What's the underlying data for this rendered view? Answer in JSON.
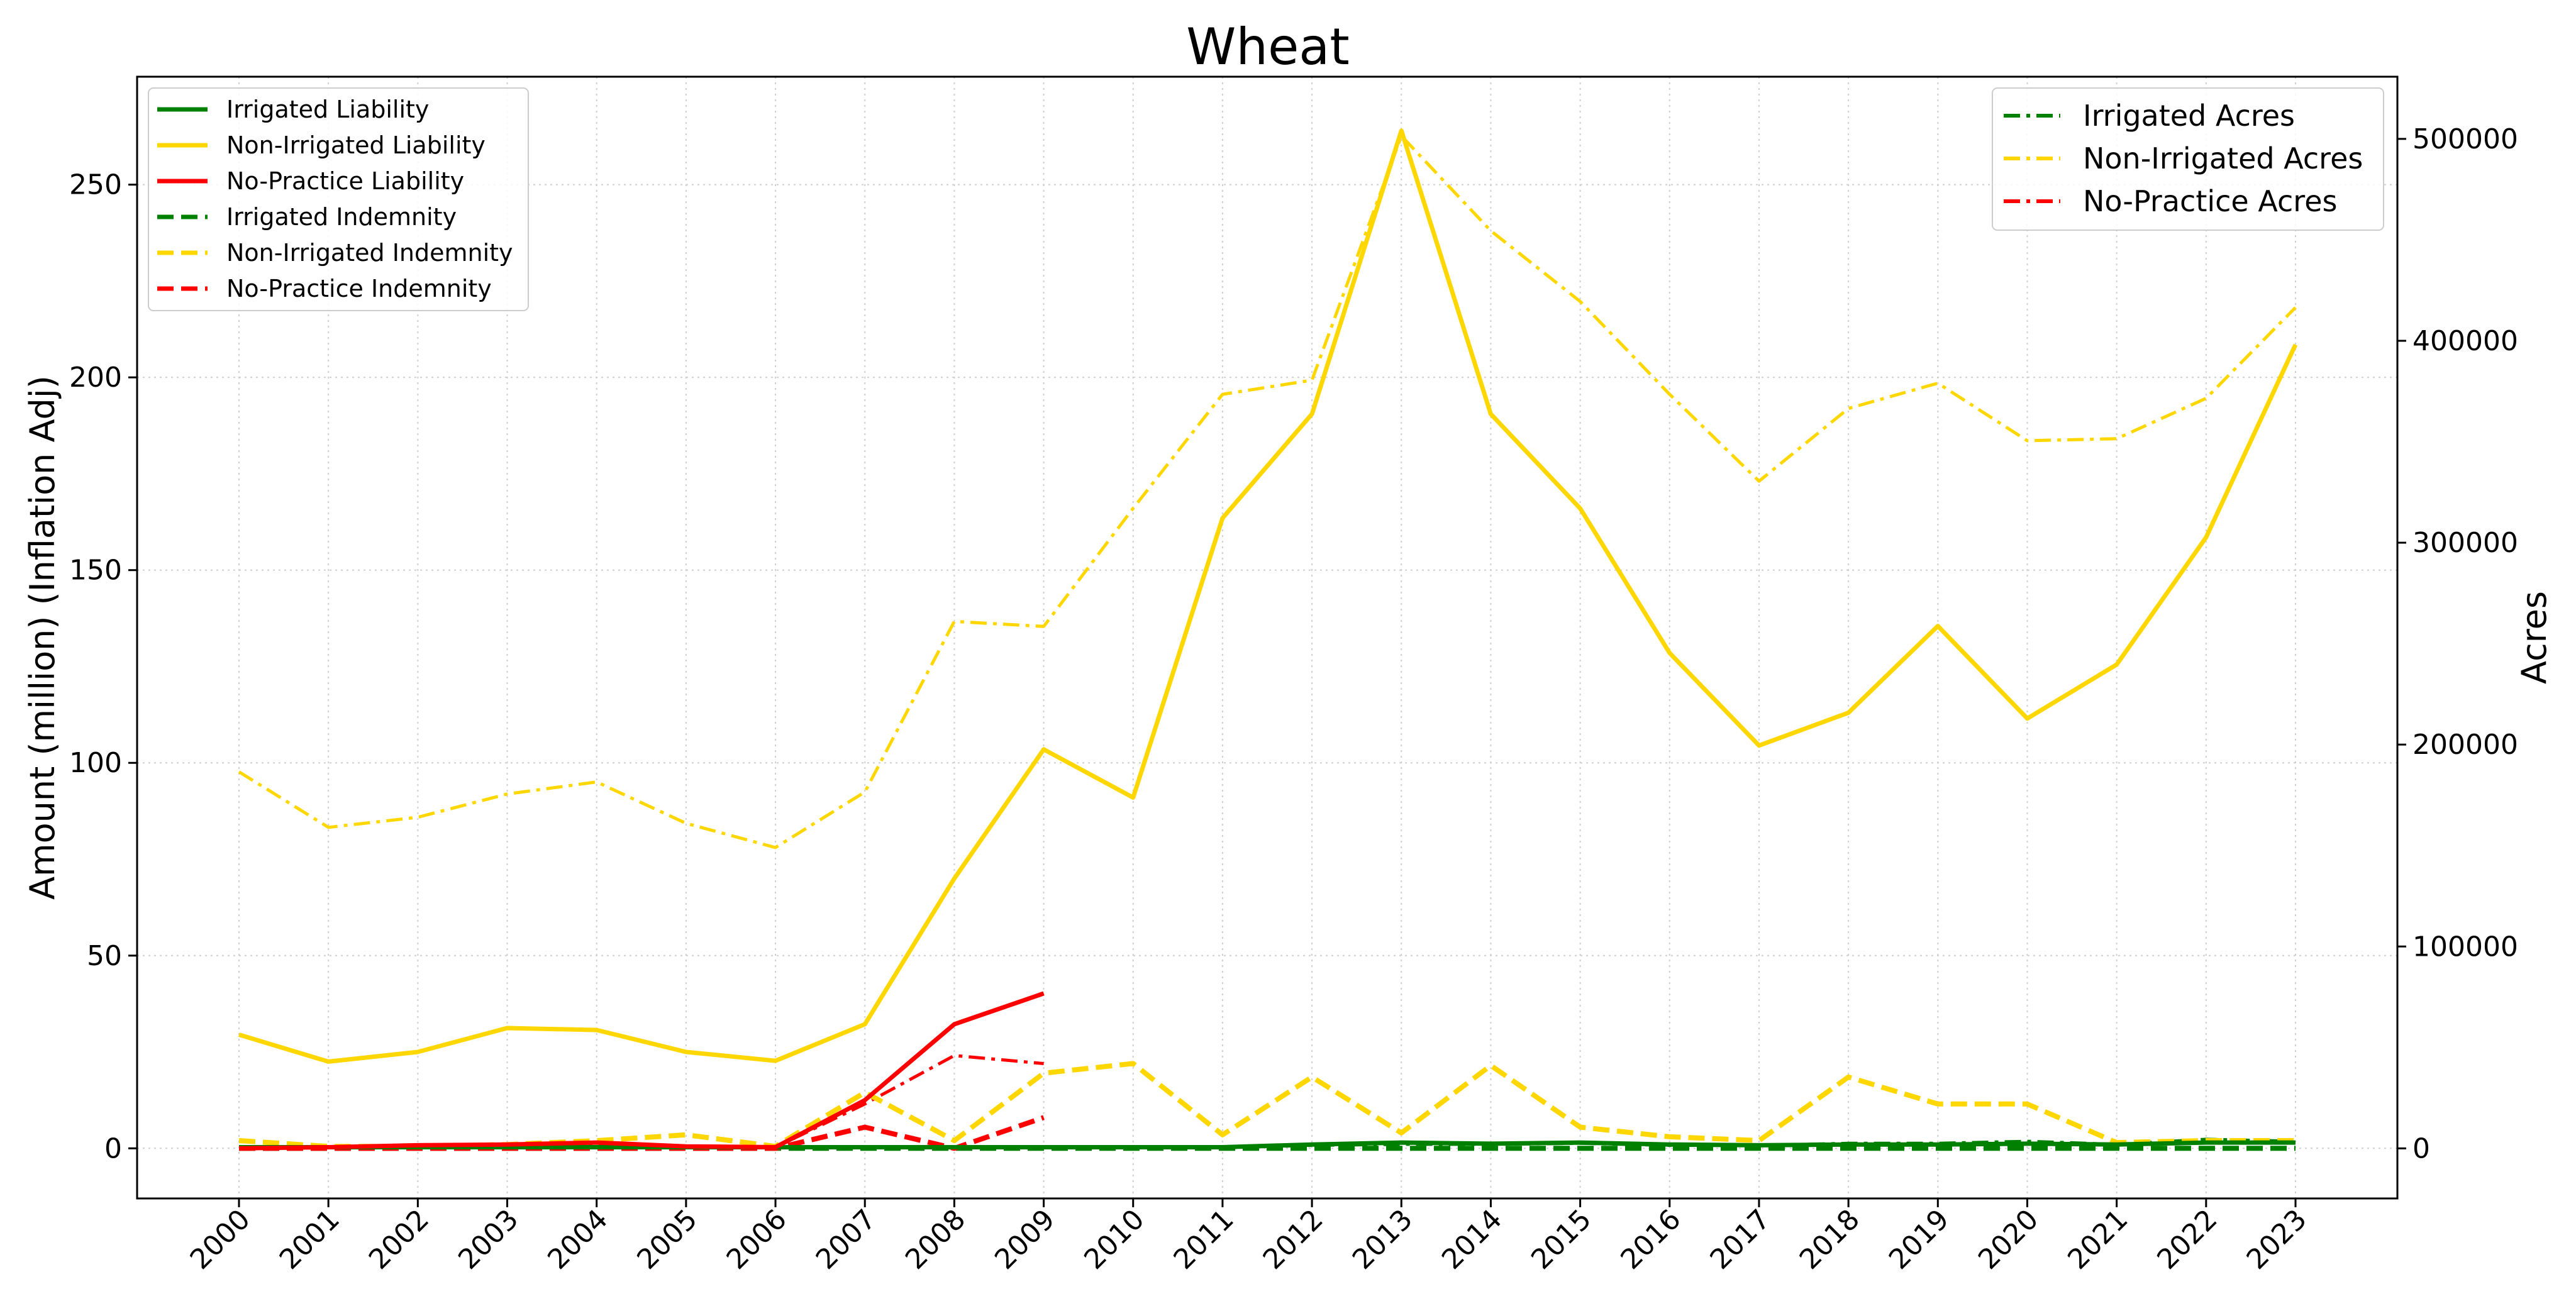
{
  "chart_data": {
    "type": "line",
    "title": "Wheat",
    "ylabel": "Amount (million) (Inflation Adj)",
    "y2label": "Acres",
    "ylim": [
      -13,
      278
    ],
    "y2lim": [
      -24800,
      530800
    ],
    "yticks": [
      0,
      50,
      100,
      150,
      200,
      250
    ],
    "y2ticks": [
      0,
      100000,
      200000,
      300000,
      400000,
      500000
    ],
    "grid": true,
    "legend_left_position": "upper-left",
    "legend_right_position": "upper-right",
    "x": [
      2000,
      2001,
      2002,
      2003,
      2004,
      2005,
      2006,
      2007,
      2008,
      2009,
      2010,
      2011,
      2012,
      2013,
      2014,
      2015,
      2016,
      2017,
      2018,
      2019,
      2020,
      2021,
      2022,
      2023
    ],
    "x_labels": [
      "2000",
      "2001",
      "2002",
      "2003",
      "2004",
      "2005",
      "2006",
      "2007",
      "2008",
      "2009",
      "2010",
      "2011",
      "2012",
      "2013",
      "2014",
      "2015",
      "2016",
      "2017",
      "2018",
      "2019",
      "2020",
      "2021",
      "2022",
      "2023"
    ],
    "series": [
      {
        "name": "Irrigated Liability",
        "axis": "left",
        "color": "#008000",
        "style": "solid",
        "values": [
          0.3,
          0.3,
          0.3,
          0.3,
          0.3,
          0.3,
          0.3,
          0.3,
          0.3,
          0.3,
          0.3,
          0.3,
          1.0,
          1.5,
          1.2,
          1.5,
          1.0,
          0.8,
          1.0,
          1.0,
          1.2,
          1.0,
          1.5,
          1.5
        ]
      },
      {
        "name": "Non-Irrigated Liability",
        "axis": "left",
        "color": "#FFD700",
        "style": "solid",
        "values": [
          29.5,
          22.5,
          25,
          31.2,
          30.7,
          25,
          22.7,
          32.2,
          70,
          103.5,
          91,
          163.5,
          190.5,
          264,
          190.5,
          166,
          128.5,
          104.5,
          113,
          135.5,
          111.5,
          125.5,
          158.5,
          208.5
        ]
      },
      {
        "name": "No-Practice Liability",
        "axis": "left",
        "color": "#FF0000",
        "style": "solid",
        "values": [
          0,
          0.3,
          0.8,
          1.0,
          1.5,
          0.5,
          0.3,
          12.5,
          32.2,
          40.2,
          null,
          null,
          null,
          null,
          null,
          null,
          null,
          null,
          null,
          null,
          null,
          null,
          null,
          null
        ]
      },
      {
        "name": "Irrigated Indemnity",
        "axis": "left",
        "color": "#008000",
        "style": "dashed",
        "values": [
          0,
          0,
          0,
          0,
          0,
          0,
          0,
          0,
          0,
          0,
          0,
          0,
          0,
          0,
          0,
          0,
          0,
          0,
          0,
          0,
          0,
          0,
          0,
          0
        ]
      },
      {
        "name": "Non-Irrigated Indemnity",
        "axis": "left",
        "color": "#FFD700",
        "style": "dashed",
        "values": [
          2,
          0.5,
          0.5,
          1,
          2,
          3.5,
          0.5,
          14.5,
          2,
          19.5,
          22,
          3.5,
          18.5,
          4,
          21.5,
          5.5,
          3,
          2,
          18.5,
          11.5,
          11.5,
          1.5,
          2,
          2
        ]
      },
      {
        "name": "No-Practice Indemnity",
        "axis": "left",
        "color": "#FF0000",
        "style": "dashed",
        "values": [
          0,
          0,
          0,
          0,
          0,
          0,
          0,
          5.5,
          0,
          8,
          null,
          null,
          null,
          null,
          null,
          null,
          null,
          null,
          null,
          null,
          null,
          null,
          null,
          null
        ]
      },
      {
        "name": "Irrigated Acres",
        "axis": "right",
        "color": "#008000",
        "style": "dashdot",
        "values": [
          0,
          300,
          300,
          1500,
          2500,
          500,
          300,
          400,
          400,
          700,
          300,
          300,
          1500,
          2000,
          2000,
          2500,
          1500,
          1500,
          2500,
          2500,
          3500,
          2000,
          4500,
          3500
        ]
      },
      {
        "name": "Non-Irrigated Acres",
        "axis": "right",
        "color": "#FFD700",
        "style": "dashdot",
        "values": [
          186500,
          159000,
          164000,
          175500,
          181500,
          161000,
          149000,
          176500,
          261000,
          258500,
          317000,
          373500,
          380500,
          501500,
          454500,
          419500,
          373500,
          330500,
          366500,
          379000,
          350500,
          351500,
          371500,
          416500
        ]
      },
      {
        "name": "No-Practice Acres",
        "axis": "right",
        "color": "#FF0000",
        "style": "dashdot",
        "values": [
          0,
          500,
          1000,
          1500,
          2500,
          500,
          500,
          22000,
          46000,
          42000,
          null,
          null,
          null,
          null,
          null,
          null,
          null,
          null,
          null,
          null,
          null,
          null,
          null,
          null
        ]
      }
    ]
  }
}
